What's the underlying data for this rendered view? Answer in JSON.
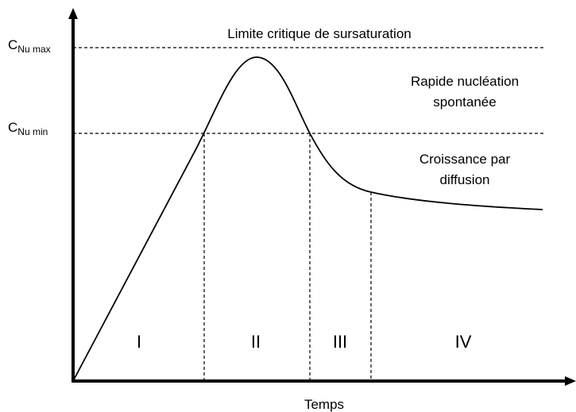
{
  "y_labels": [
    {
      "main": "C",
      "sub": "Nu max"
    },
    {
      "main": "C",
      "sub": "Nu min"
    }
  ],
  "annotations": {
    "critical_limit": "Limite critique de sursaturation",
    "nucleation": [
      "Rapide nucléation",
      "spontanée"
    ],
    "growth": [
      "Croissance par",
      "diffusion"
    ]
  },
  "phases": [
    "I",
    "II",
    "III",
    "IV"
  ],
  "x_axis_label": "Temps"
}
